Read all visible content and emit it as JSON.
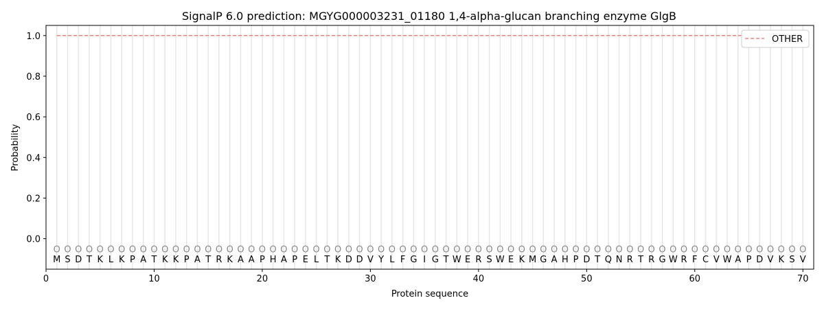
{
  "chart_data": {
    "type": "line",
    "title": "SignalP 6.0 prediction: MGYG000003231_01180 1,4-alpha-glucan branching enzyme GlgB",
    "xlabel": "Protein sequence",
    "ylabel": "Probability",
    "xlim": [
      0,
      71
    ],
    "ylim": [
      -0.15,
      1.05
    ],
    "xticks": [
      "0",
      "10",
      "20",
      "30",
      "40",
      "50",
      "60",
      "70"
    ],
    "yticks": [
      "0.0",
      "0.2",
      "0.4",
      "0.6",
      "0.8",
      "1.0"
    ],
    "legend_position": "top-right",
    "sequence": [
      "M",
      "S",
      "D",
      "T",
      "K",
      "L",
      "K",
      "P",
      "A",
      "T",
      "K",
      "K",
      "P",
      "A",
      "T",
      "R",
      "K",
      "A",
      "A",
      "P",
      "H",
      "A",
      "P",
      "E",
      "L",
      "T",
      "K",
      "D",
      "D",
      "V",
      "Y",
      "L",
      "F",
      "G",
      "I",
      "G",
      "T",
      "W",
      "E",
      "R",
      "S",
      "W",
      "E",
      "K",
      "M",
      "G",
      "A",
      "H",
      "P",
      "D",
      "T",
      "Q",
      "N",
      "R",
      "T",
      "R",
      "G",
      "W",
      "R",
      "F",
      "C",
      "V",
      "W",
      "A",
      "P",
      "D",
      "V",
      "K",
      "S",
      "V"
    ],
    "predicted_label": "O",
    "series": [
      {
        "name": "OTHER",
        "color": "#f08080",
        "style": "dashed",
        "x_range": [
          1,
          70
        ],
        "value": 1.0
      }
    ]
  }
}
